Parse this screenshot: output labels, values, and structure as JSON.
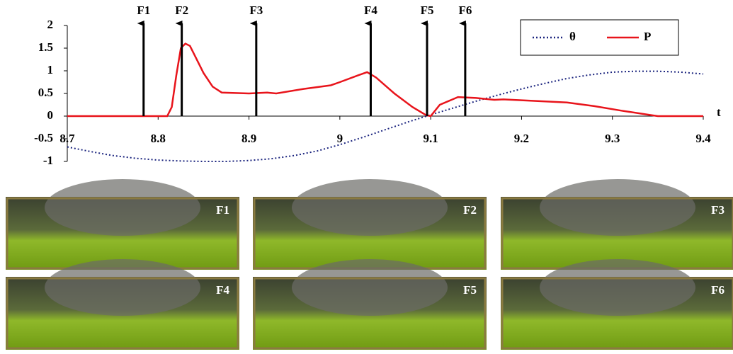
{
  "chart_data": {
    "type": "line",
    "xlabel": "t",
    "xlim": [
      8.7,
      9.4
    ],
    "xticks": [
      8.7,
      8.8,
      8.9,
      9,
      9.1,
      9.2,
      9.3,
      9.4
    ],
    "ylim": [
      -1,
      2
    ],
    "yticks": [
      -1,
      -0.5,
      0,
      0.5,
      1,
      1.5,
      2
    ],
    "legend": "top-right",
    "series": [
      {
        "name": "θ",
        "color": "#1a237e",
        "style": "dotted",
        "x": [
          8.7,
          8.725,
          8.75,
          8.775,
          8.8,
          8.825,
          8.85,
          8.875,
          8.9,
          8.925,
          8.95,
          8.975,
          9.0,
          9.025,
          9.05,
          9.075,
          9.1,
          9.125,
          9.15,
          9.175,
          9.2,
          9.225,
          9.25,
          9.275,
          9.3,
          9.325,
          9.35,
          9.375,
          9.4
        ],
        "values": [
          -0.68,
          -0.78,
          -0.87,
          -0.93,
          -0.97,
          -0.99,
          -1.0,
          -1.0,
          -0.98,
          -0.94,
          -0.87,
          -0.77,
          -0.63,
          -0.47,
          -0.3,
          -0.13,
          0.03,
          0.18,
          0.33,
          0.47,
          0.6,
          0.72,
          0.83,
          0.91,
          0.97,
          0.99,
          0.99,
          0.97,
          0.93
        ]
      },
      {
        "name": "P",
        "color": "#e8141b",
        "style": "solid",
        "x": [
          8.7,
          8.81,
          8.815,
          8.82,
          8.825,
          8.83,
          8.835,
          8.84,
          8.85,
          8.86,
          8.87,
          8.9,
          8.92,
          8.93,
          8.96,
          8.99,
          9.0,
          9.02,
          9.03,
          9.04,
          9.06,
          9.08,
          9.095,
          9.1,
          9.11,
          9.13,
          9.15,
          9.17,
          9.18,
          9.22,
          9.25,
          9.28,
          9.31,
          9.34,
          9.35,
          9.4
        ],
        "values": [
          0,
          0,
          0.2,
          0.9,
          1.5,
          1.6,
          1.55,
          1.35,
          0.95,
          0.65,
          0.52,
          0.5,
          0.52,
          0.5,
          0.6,
          0.68,
          0.75,
          0.9,
          0.97,
          0.85,
          0.5,
          0.2,
          0.02,
          0,
          0.25,
          0.42,
          0.4,
          0.36,
          0.37,
          0.33,
          0.3,
          0.22,
          0.12,
          0.03,
          0,
          0
        ]
      }
    ],
    "annotations": [
      {
        "label": "F1",
        "x": 8.784
      },
      {
        "label": "F2",
        "x": 8.826
      },
      {
        "label": "F3",
        "x": 8.908
      },
      {
        "label": "F4",
        "x": 9.034
      },
      {
        "label": "F5",
        "x": 9.096
      },
      {
        "label": "F6",
        "x": 9.138
      }
    ]
  },
  "panels": [
    "F1",
    "F2",
    "F3",
    "F4",
    "F5",
    "F6"
  ]
}
